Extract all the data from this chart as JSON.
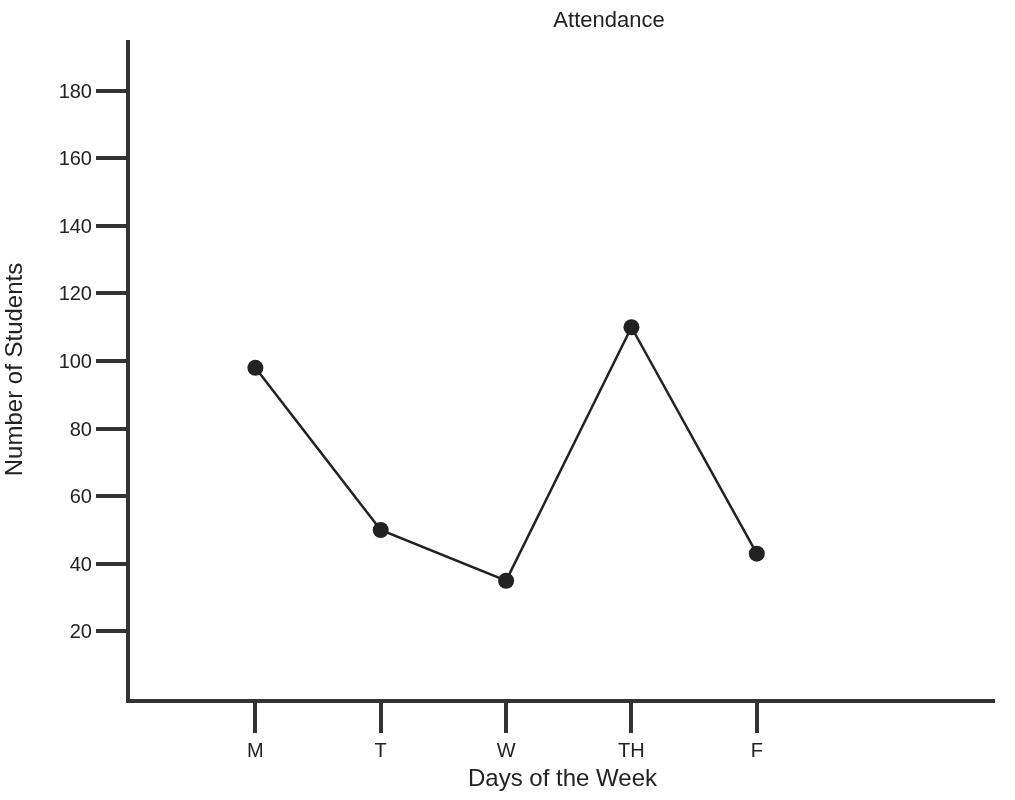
{
  "chart_data": {
    "type": "line",
    "title": "Attendance",
    "xlabel": "Days of the Week",
    "ylabel": "Number of Students",
    "categories": [
      "M",
      "T",
      "W",
      "TH",
      "F"
    ],
    "values": [
      98,
      50,
      35,
      110,
      43
    ],
    "color": "#222222",
    "marker": "circle",
    "line_style": "solid",
    "ylim": [
      0,
      195
    ],
    "yticks": [
      20,
      40,
      60,
      80,
      100,
      120,
      140,
      160,
      180
    ]
  }
}
